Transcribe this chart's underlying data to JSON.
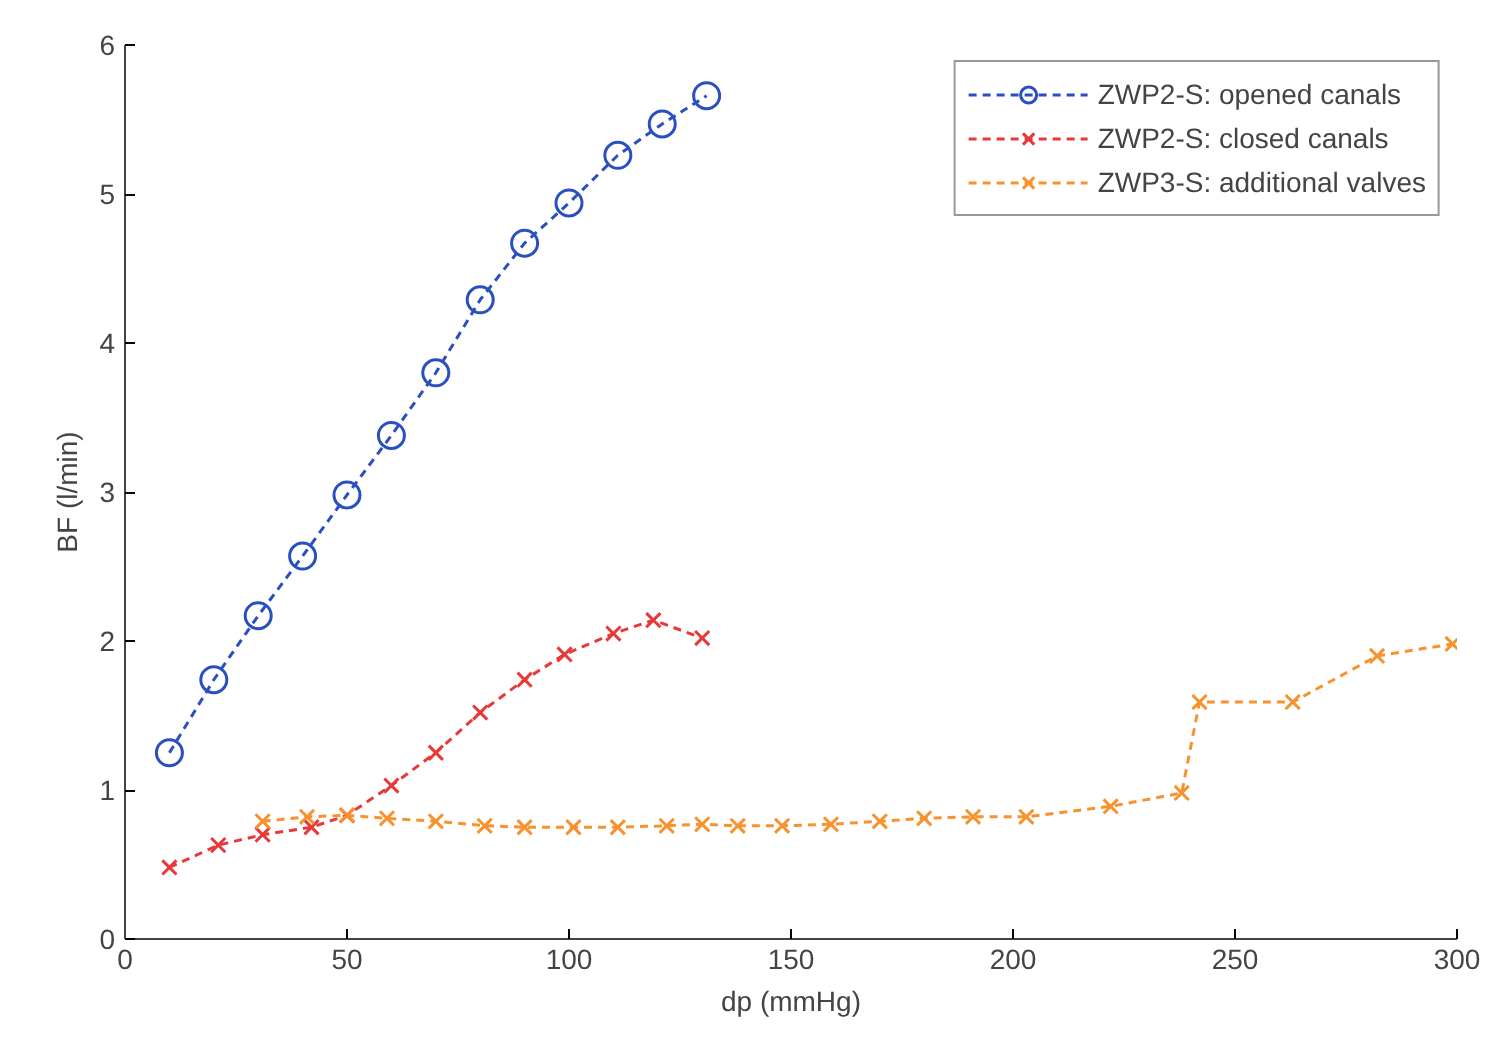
{
  "chart_data": {
    "type": "line",
    "xlabel": "dp (mmHg)",
    "ylabel": "BF (l/min)",
    "xlim": [
      0,
      300
    ],
    "ylim": [
      0,
      6
    ],
    "xticks": [
      0,
      50,
      100,
      150,
      200,
      250,
      300
    ],
    "yticks": [
      0,
      1,
      2,
      3,
      4,
      5,
      6
    ],
    "grid": false,
    "legend": "top right",
    "line_style": "dashed",
    "series": [
      {
        "name": "ZWP2-S: opened canals",
        "color": "#2a4fc0",
        "marker": "circle",
        "x": [
          10,
          20,
          30,
          40,
          50,
          60,
          70,
          80,
          90,
          100,
          111,
          121,
          131
        ],
        "values": [
          1.25,
          1.74,
          2.17,
          2.57,
          2.98,
          3.38,
          3.8,
          4.29,
          4.67,
          4.94,
          5.26,
          5.47,
          5.66
        ]
      },
      {
        "name": "ZWP2-S: closed canals",
        "color": "#e8383a",
        "marker": "cross",
        "x": [
          10,
          21,
          31,
          42,
          50,
          60,
          70,
          80,
          90,
          99,
          110,
          119,
          130
        ],
        "values": [
          0.48,
          0.63,
          0.7,
          0.75,
          0.83,
          1.03,
          1.25,
          1.52,
          1.74,
          1.91,
          2.05,
          2.14,
          2.02
        ]
      },
      {
        "name": "ZWP3-S: additional valves",
        "color": "#f7922e",
        "marker": "cross",
        "x": [
          31,
          41,
          50,
          59,
          70,
          81,
          90,
          101,
          111,
          122,
          130,
          138,
          148,
          159,
          170,
          180,
          191,
          203,
          222,
          238,
          242,
          263,
          282,
          299
        ],
        "values": [
          0.79,
          0.82,
          0.83,
          0.81,
          0.79,
          0.76,
          0.75,
          0.75,
          0.75,
          0.76,
          0.77,
          0.76,
          0.76,
          0.77,
          0.79,
          0.81,
          0.82,
          0.82,
          0.89,
          0.98,
          1.59,
          1.59,
          1.9,
          1.98
        ]
      }
    ]
  }
}
